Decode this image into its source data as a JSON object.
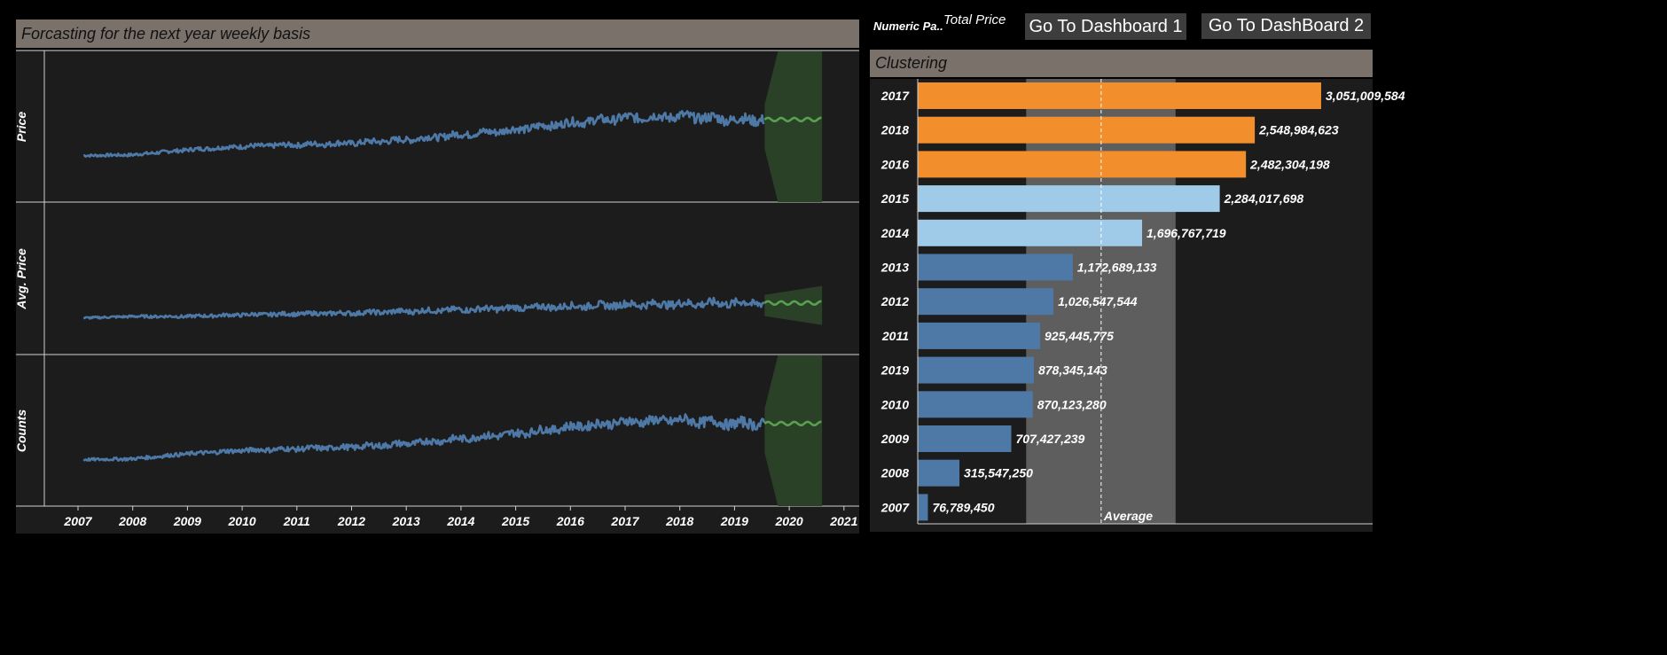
{
  "forecast": {
    "title": "Forcasting for the next year weekly basis",
    "rows": [
      "Price",
      "Avg. Price",
      "Counts"
    ],
    "x_ticks": [
      "2007",
      "2008",
      "2009",
      "2010",
      "2011",
      "2012",
      "2013",
      "2014",
      "2015",
      "2016",
      "2017",
      "2018",
      "2019",
      "2020",
      "2021"
    ]
  },
  "header": {
    "numeric_param_label": "Numeric Pa..",
    "numeric_param_value": "Total Price",
    "dashboard1_label": "Go To Dashboard 1",
    "dashboard2_label": "Go To DashBoard 2"
  },
  "clustering": {
    "title": "Clustering",
    "average_label": "Average",
    "cluster_colors": {
      "high": "#f28e2b",
      "mid": "#a0cbe8",
      "low": "#4e79a7"
    }
  },
  "colors": {
    "actual_line": "#4e79a7",
    "forecast_line": "#59a14f",
    "forecast_band": "#2a4128"
  },
  "chart_data": [
    {
      "type": "bar",
      "orientation": "horizontal",
      "title": "Clustering",
      "measure": "Total Price",
      "categories": [
        "2017",
        "2018",
        "2016",
        "2015",
        "2014",
        "2013",
        "2012",
        "2011",
        "2019",
        "2010",
        "2009",
        "2008",
        "2007"
      ],
      "values": [
        3051009584,
        2548984623,
        2482304198,
        2284017698,
        1696767719,
        1172689133,
        1026547544,
        925445775,
        878345143,
        870123280,
        707427239,
        315547250,
        76789450
      ],
      "value_labels": [
        "3,051,009,584",
        "2,548,984,623",
        "2,482,304,198",
        "2,284,017,698",
        "1,696,767,719",
        "1,172,689,133",
        "1,026,547,544",
        "925,445,775",
        "878,345,143",
        "870,123,280",
        "707,427,239",
        "315,547,250",
        "76,789,450"
      ],
      "clusters": [
        "high",
        "high",
        "high",
        "mid",
        "mid",
        "low",
        "low",
        "low",
        "low",
        "low",
        "low",
        "low",
        "low"
      ],
      "reference_line": {
        "label": "Average",
        "value": 1387000000
      },
      "reference_band": [
        820000000,
        1950000000
      ],
      "xlim": [
        0,
        3400000000
      ]
    },
    {
      "type": "line",
      "title": "Forcasting for the next year weekly basis",
      "x_range": [
        "2006-07",
        "2021-03"
      ],
      "actual_range": [
        "2007-02",
        "2019-08"
      ],
      "forecast_range": [
        "2019-08",
        "2020-08"
      ],
      "series": [
        {
          "name": "Price",
          "anchor_values": [
            0.05,
            0.06,
            0.12,
            0.16,
            0.18,
            0.2,
            0.24,
            0.3,
            0.36,
            0.44,
            0.5,
            0.52,
            0.48
          ],
          "anchor_years": [
            2007,
            2008,
            2009,
            2010,
            2011,
            2012,
            2013,
            2014,
            2015,
            2016,
            2017,
            2018,
            2019
          ],
          "noise": 0.05,
          "ylim": [
            0,
            1
          ]
        },
        {
          "name": "Avg. Price",
          "anchor_values": [
            0.1,
            0.12,
            0.12,
            0.14,
            0.15,
            0.16,
            0.18,
            0.2,
            0.22,
            0.24,
            0.26,
            0.27,
            0.28
          ],
          "anchor_years": [
            2007,
            2008,
            2009,
            2010,
            2011,
            2012,
            2013,
            2014,
            2015,
            2016,
            2017,
            2018,
            2019
          ],
          "noise": 0.04,
          "ylim": [
            0,
            1
          ]
        },
        {
          "name": "Counts",
          "anchor_values": [
            0.05,
            0.06,
            0.12,
            0.16,
            0.18,
            0.2,
            0.24,
            0.3,
            0.36,
            0.44,
            0.5,
            0.52,
            0.48
          ],
          "anchor_years": [
            2007,
            2008,
            2009,
            2010,
            2011,
            2012,
            2013,
            2014,
            2015,
            2016,
            2017,
            2018,
            2019
          ],
          "noise": 0.05,
          "ylim": [
            0,
            1
          ]
        }
      ]
    }
  ]
}
